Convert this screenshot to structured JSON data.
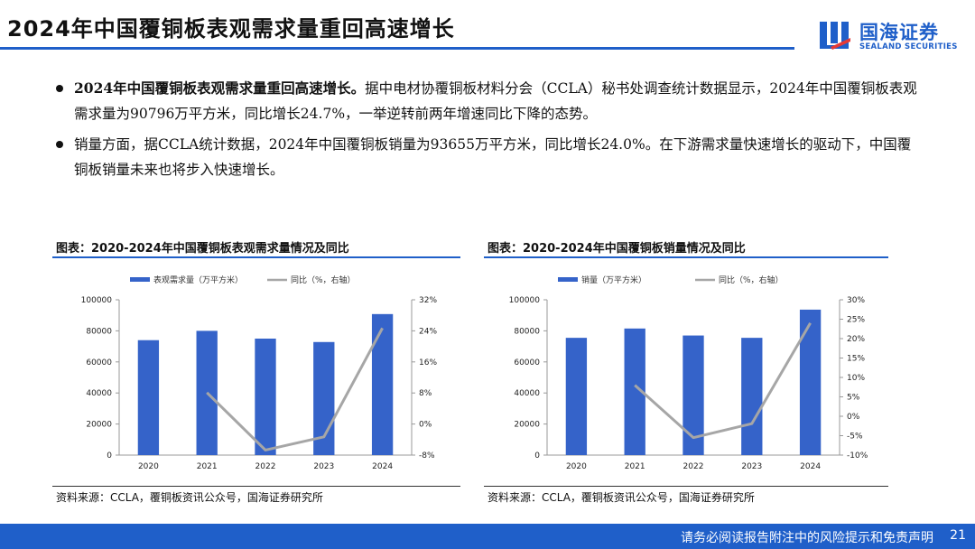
{
  "header": {
    "title": "2024年中国覆铜板表观需求量重回高速增长",
    "logo_cn": "国海证券",
    "logo_en": "SEALAND SECURITIES"
  },
  "bullets": [
    {
      "bold": "2024年中国覆铜板表观需求量重回高速增长。",
      "text": "据中电材协覆铜板材料分会（CCLA）秘书处调查统计数据显示，2024年中国覆铜板表观需求量为90796万平方米，同比增长24.7%，一举逆转前两年增速同比下降的态势。"
    },
    {
      "bold": "",
      "text": "销量方面，据CCLA统计数据，2024年中国覆铜板销量为93655万平方米，同比增长24.0%。在下游需求量快速增长的驱动下，中国覆铜板销量未来也将步入快速增长。"
    }
  ],
  "charts": {
    "left_title": "图表：2020-2024年中国覆铜板表观需求量情况及同比",
    "left_source": "资料来源：CCLA，覆铜板资讯公众号，国海证券研究所",
    "right_title": "图表：2020-2024年中国覆铜板销量情况及同比",
    "right_source": "资料来源：CCLA，覆铜板资讯公众号，国海证券研究所"
  },
  "colors": {
    "bar": "#3563c9",
    "line": "#a6a6a6",
    "accent": "#1f5fc9"
  },
  "chart_data": [
    {
      "type": "bar",
      "categories": [
        "2020",
        "2021",
        "2022",
        "2023",
        "2024"
      ],
      "series": [
        {
          "name": "表观需求量（万平方米）",
          "type": "bar",
          "axis": "left",
          "values": [
            74000,
            80000,
            75000,
            72800,
            90796
          ]
        },
        {
          "name": "同比（%，右轴）",
          "type": "line",
          "axis": "right",
          "values": [
            null,
            8.1,
            -6.7,
            -3.3,
            24.7
          ]
        }
      ],
      "ylim": [
        0,
        100000
      ],
      "yticks": [
        "100000",
        "80000",
        "60000",
        "40000",
        "20000",
        "0"
      ],
      "y2lim": [
        -8,
        32
      ],
      "y2ticks": [
        "32%",
        "24%",
        "16%",
        "8%",
        "0%",
        "-8%"
      ],
      "legend": "top-center",
      "grid": false
    },
    {
      "type": "bar",
      "categories": [
        "2020",
        "2021",
        "2022",
        "2023",
        "2024"
      ],
      "series": [
        {
          "name": "销量（万平方米）",
          "type": "bar",
          "axis": "left",
          "values": [
            75500,
            81500,
            77000,
            75500,
            93655
          ]
        },
        {
          "name": "同比（%，右轴）",
          "type": "line",
          "axis": "right",
          "values": [
            null,
            8.0,
            -5.5,
            -1.9,
            24.0
          ]
        }
      ],
      "ylim": [
        0,
        100000
      ],
      "yticks": [
        "100000",
        "80000",
        "60000",
        "40000",
        "20000",
        "0"
      ],
      "y2lim": [
        -10,
        30
      ],
      "y2ticks": [
        "30%",
        "25%",
        "20%",
        "15%",
        "10%",
        "5%",
        "0%",
        "-5%",
        "-10%"
      ],
      "legend": "top-center",
      "grid": false
    }
  ],
  "footer": {
    "text": "请务必阅读报告附注中的风险提示和免责声明",
    "page": "21"
  }
}
